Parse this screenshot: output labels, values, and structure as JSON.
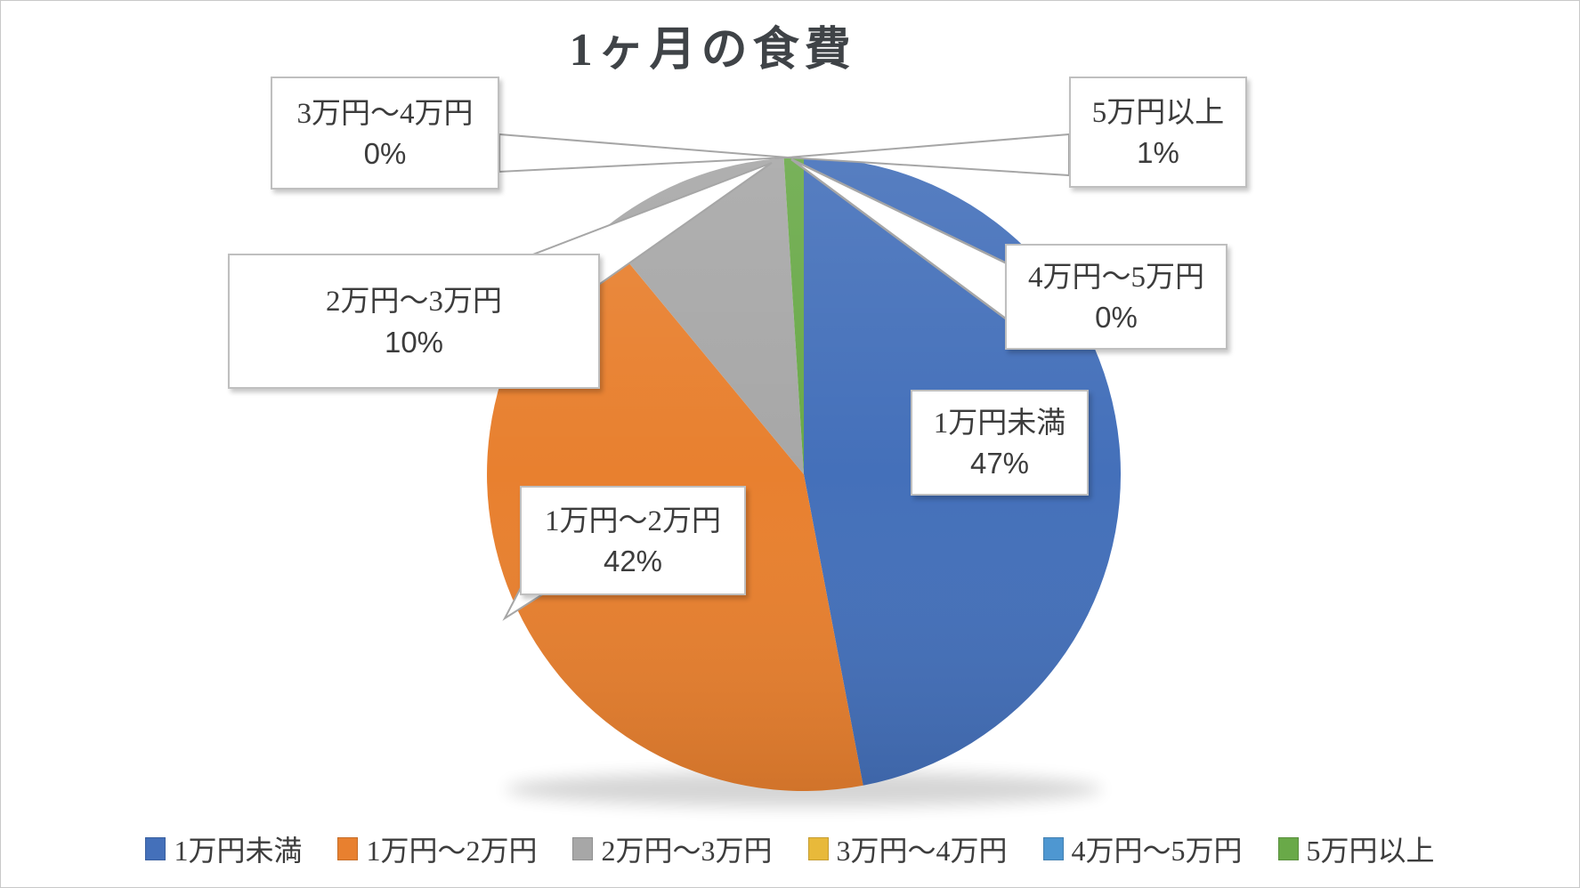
{
  "chart_data": {
    "type": "pie",
    "title": "1ヶ月の食費",
    "categories": [
      "1万円未満",
      "1万円〜2万円",
      "2万円〜3万円",
      "3万円〜4万円",
      "4万円〜5万円",
      "5万円以上"
    ],
    "values": [
      47,
      42,
      10,
      0,
      0,
      1
    ],
    "unit": "%",
    "colors": [
      "#4470BA",
      "#E8802F",
      "#A7A7A7",
      "#E8B93A",
      "#4E97D1",
      "#69A948"
    ],
    "legend_position": "bottom",
    "start_angle_deg": 0,
    "direction": "clockwise",
    "callouts": [
      {
        "label": "1万円未満",
        "value_label": "47%"
      },
      {
        "label": "1万円〜2万円",
        "value_label": "42%"
      },
      {
        "label": "2万円〜3万円",
        "value_label": "10%"
      },
      {
        "label": "3万円〜4万円",
        "value_label": "0%"
      },
      {
        "label": "4万円〜5万円",
        "value_label": "0%"
      },
      {
        "label": "5万円以上",
        "value_label": "1%"
      }
    ]
  }
}
